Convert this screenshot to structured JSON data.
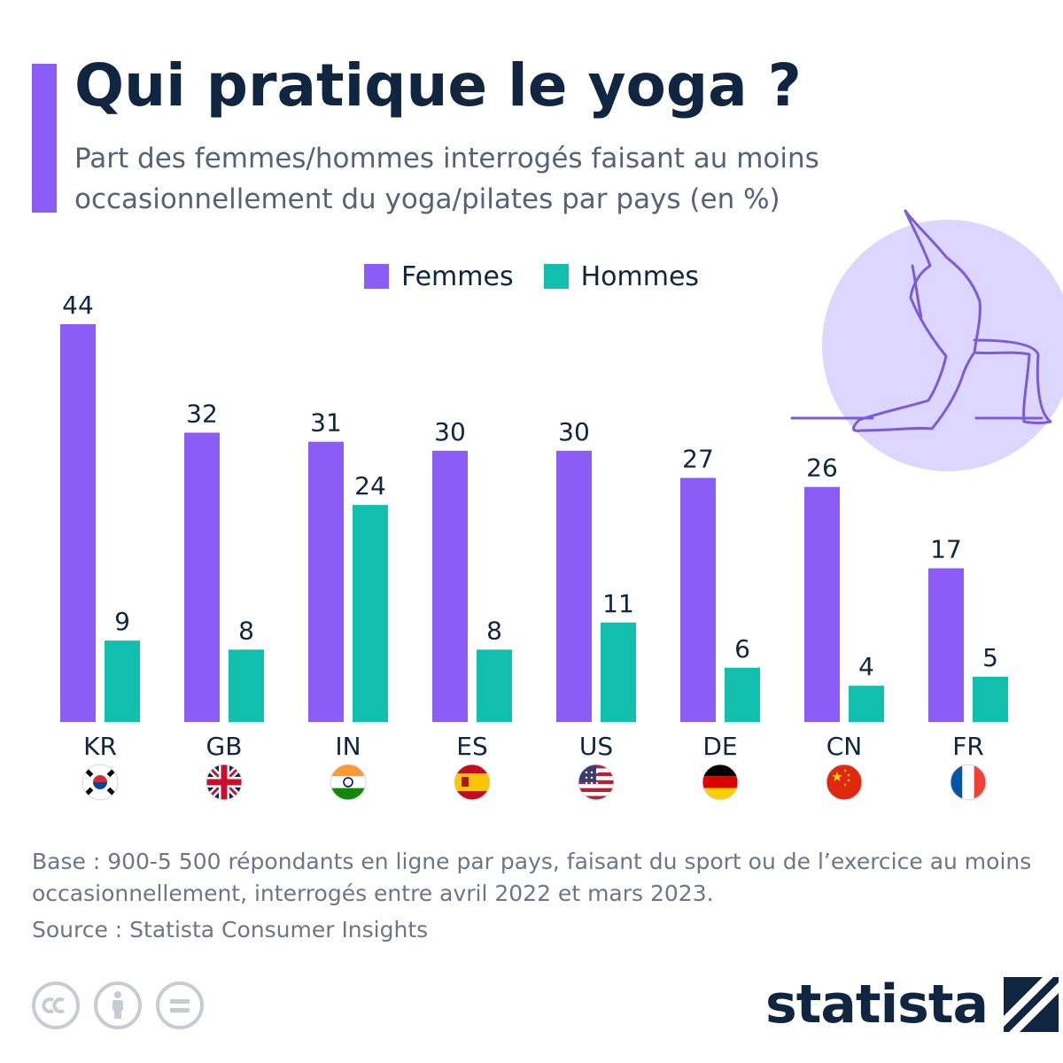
{
  "header": {
    "title": "Qui pratique le yoga ?",
    "subtitle": "Part des femmes/hommes interrogés faisant au moins occasionnellement du yoga/pilates par pays (en %)"
  },
  "colors": {
    "femmes": "#8b5cf6",
    "hommes": "#10bfae",
    "accent": "#8b5cf6",
    "illustration_circle": "#ddd6fe"
  },
  "illustration_icon": "yoga-pose-icon",
  "chart_data": {
    "type": "bar",
    "title": "Qui pratique le yoga ?",
    "categories": [
      "KR",
      "GB",
      "IN",
      "ES",
      "US",
      "DE",
      "CN",
      "FR"
    ],
    "series": [
      {
        "name": "Femmes",
        "values": [
          44,
          32,
          31,
          30,
          30,
          27,
          26,
          17
        ]
      },
      {
        "name": "Hommes",
        "values": [
          9,
          8,
          24,
          8,
          11,
          6,
          4,
          5
        ]
      }
    ],
    "ylim": [
      0,
      44
    ],
    "grid": false,
    "legend_position": "top-center",
    "xlabel": "",
    "ylabel": ""
  },
  "flags": [
    "kr-flag-icon",
    "gb-flag-icon",
    "in-flag-icon",
    "es-flag-icon",
    "us-flag-icon",
    "de-flag-icon",
    "cn-flag-icon",
    "fr-flag-icon"
  ],
  "footer": {
    "note": "Base : 900-5 500 répondants en ligne par pays, faisant du sport ou de l’exercice au moins occasionnellement, interrogés entre avril 2022 et mars 2023.",
    "source": "Source : Statista Consumer Insights",
    "license_icons": [
      "cc-icon",
      "attribution-icon",
      "no-derivatives-icon"
    ],
    "brand": "statista",
    "brand_icon": "statista-logo-icon"
  }
}
